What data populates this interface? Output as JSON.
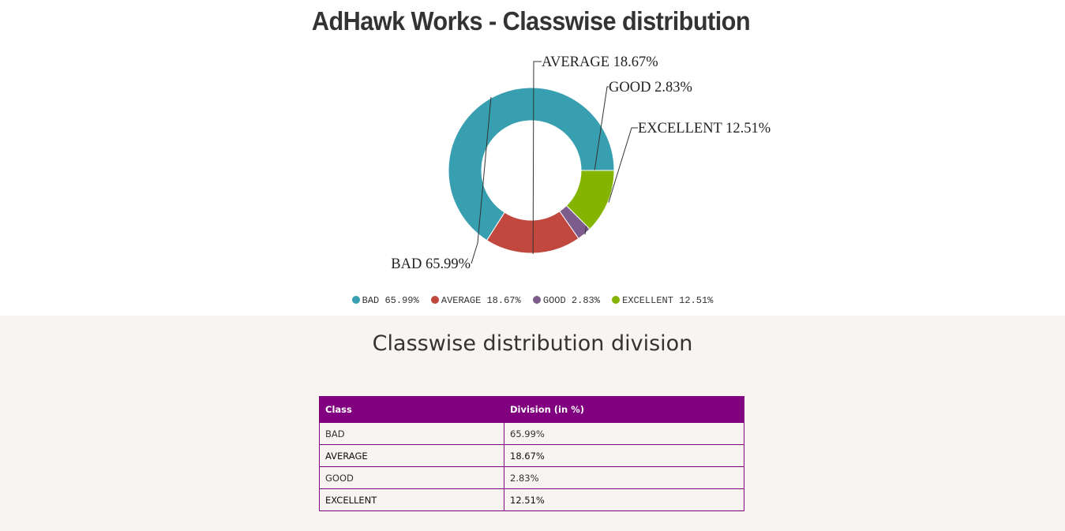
{
  "chart_data": {
    "type": "pie",
    "variant": "donut",
    "title": "AdHawk Works - Classwise distribution",
    "series": [
      {
        "name": "BAD",
        "value": 65.99,
        "label": "BAD 65.99%",
        "legend": "BAD 65.99%",
        "color": "#389fb0"
      },
      {
        "name": "AVERAGE",
        "value": 18.67,
        "label": "AVERAGE 18.67%",
        "legend": "AVERAGE 18.67%",
        "color": "#c0483f"
      },
      {
        "name": "GOOD",
        "value": 2.83,
        "label": "GOOD 2.83%",
        "legend": "GOOD 2.83%",
        "color": "#7d5b8d"
      },
      {
        "name": "EXCELLENT",
        "value": 12.51,
        "label": "EXCELLENT 12.51%",
        "legend": "EXCELLENT 12.51%",
        "color": "#84b300"
      }
    ],
    "start_angle_deg": 90,
    "direction": "counterclockwise",
    "legend_position": "bottom"
  },
  "section": {
    "title": "Classwise distribution division"
  },
  "table": {
    "headers": [
      "Class",
      "Division (in %)"
    ],
    "rows": [
      [
        "BAD",
        "65.99%"
      ],
      [
        "AVERAGE",
        "18.67%"
      ],
      [
        "GOOD",
        "2.83%"
      ],
      [
        "EXCELLENT",
        "12.51%"
      ]
    ],
    "header_color": "#800080"
  }
}
